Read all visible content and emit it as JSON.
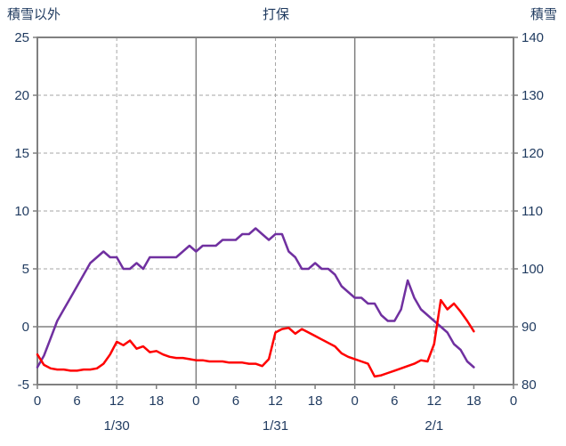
{
  "chart_data": {
    "type": "line",
    "title": "打保",
    "left_axis": {
      "label": "積雪以外",
      "min": -5,
      "max": 25,
      "ticks": [
        25,
        20,
        15,
        10,
        5,
        0,
        -5
      ]
    },
    "right_axis": {
      "label": "積雪",
      "min": 80,
      "max": 140,
      "ticks": [
        140,
        130,
        120,
        110,
        100,
        90,
        80
      ]
    },
    "x_axis": {
      "min": 0,
      "max": 72,
      "tick_hours": [
        0,
        6,
        12,
        18,
        24,
        30,
        36,
        42,
        48,
        54,
        60,
        66,
        72
      ],
      "tick_labels": [
        "0",
        "6",
        "12",
        "18",
        "0",
        "6",
        "12",
        "18",
        "0",
        "6",
        "12",
        "18",
        "0"
      ],
      "date_labels": [
        {
          "label": "1/30",
          "hour": 12
        },
        {
          "label": "1/31",
          "hour": 36
        },
        {
          "label": "2/1",
          "hour": 60
        }
      ]
    },
    "gridlines": {
      "h_dashed": [
        20,
        15,
        10,
        5
      ],
      "h_solid": [
        0
      ],
      "v_dashed_hours": [
        12,
        36,
        60
      ],
      "v_solid_hours": [
        24,
        48
      ]
    },
    "colors": {
      "border": "#808080",
      "grid": "#A6A6A6",
      "tick_text": "#1F3A5F"
    },
    "series": [
      {
        "name": "purple",
        "color": "#7030A0",
        "axis": "right",
        "x_start": 0,
        "x_step": 1,
        "values": [
          83,
          85,
          88,
          91,
          93,
          95,
          97,
          99,
          101,
          102,
          103,
          102,
          102,
          100,
          100,
          101,
          100,
          102,
          102,
          102,
          102,
          102,
          103,
          104,
          103,
          104,
          104,
          104,
          105,
          105,
          105,
          106,
          106,
          107,
          106,
          105,
          106,
          106,
          103,
          102,
          100,
          100,
          101,
          100,
          100,
          99,
          97,
          96,
          95,
          95,
          94,
          94,
          92,
          91,
          91,
          93,
          98,
          95,
          93,
          92,
          91,
          90,
          89,
          87,
          86,
          84,
          83
        ]
      },
      {
        "name": "red",
        "color": "#FF0000",
        "axis": "left",
        "x_start": 0,
        "x_step": 1,
        "values": [
          -2.4,
          -3.3,
          -3.6,
          -3.7,
          -3.7,
          -3.8,
          -3.8,
          -3.7,
          -3.7,
          -3.6,
          -3.2,
          -2.4,
          -1.3,
          -1.6,
          -1.2,
          -1.9,
          -1.7,
          -2.2,
          -2.1,
          -2.4,
          -2.6,
          -2.7,
          -2.7,
          -2.8,
          -2.9,
          -2.9,
          -3.0,
          -3.0,
          -3.0,
          -3.1,
          -3.1,
          -3.1,
          -3.2,
          -3.2,
          -3.4,
          -2.8,
          -0.5,
          -0.2,
          -0.1,
          -0.6,
          -0.2,
          -0.5,
          -0.8,
          -1.1,
          -1.4,
          -1.7,
          -2.3,
          -2.6,
          -2.8,
          -3.0,
          -3.2,
          -4.3,
          -4.2,
          -4.0,
          -3.8,
          -3.6,
          -3.4,
          -3.2,
          -2.9,
          -3.0,
          -1.5,
          2.3,
          1.5,
          2.0,
          1.3,
          0.5,
          -0.4
        ]
      }
    ]
  }
}
